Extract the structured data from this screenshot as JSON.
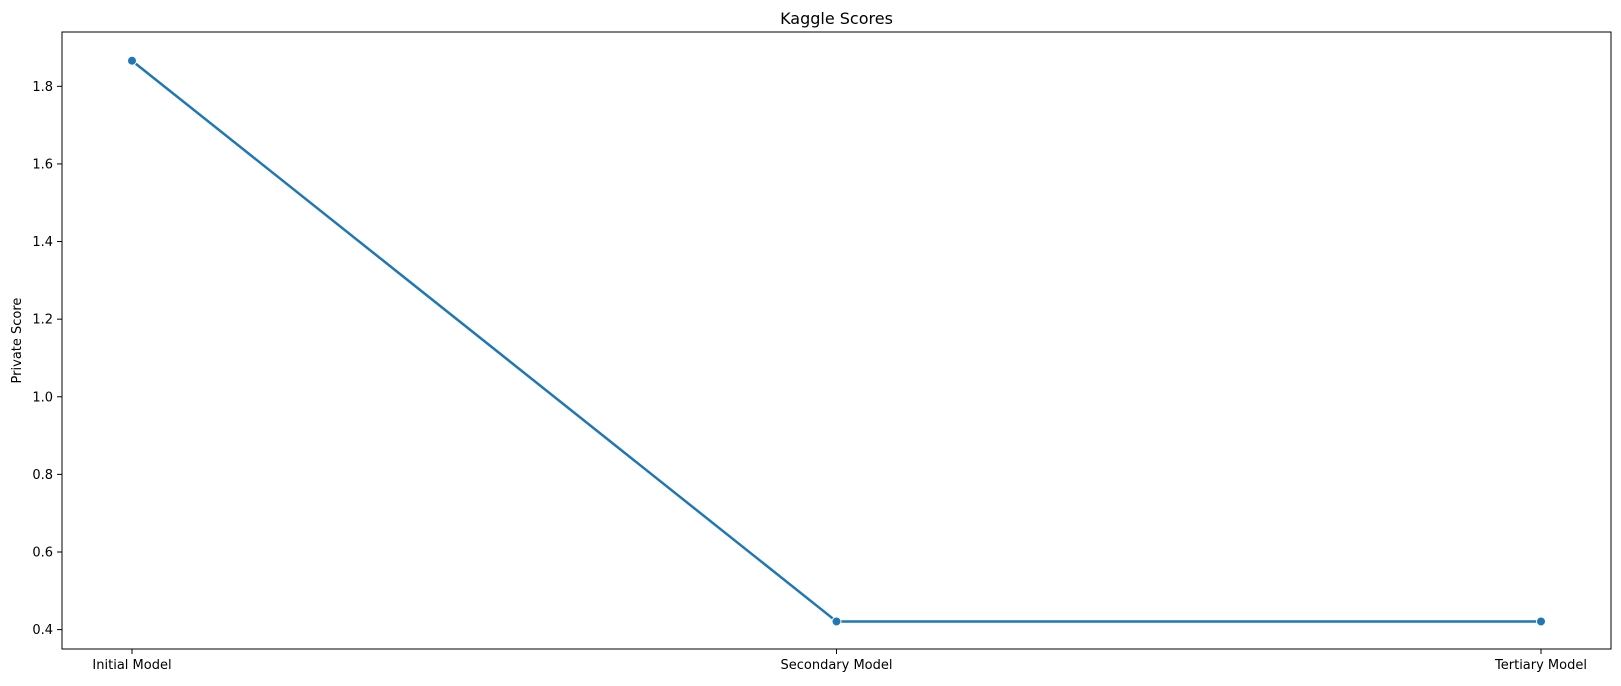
{
  "chart_data": {
    "type": "line",
    "title": "Kaggle Scores",
    "xlabel": "",
    "ylabel": "Private Score",
    "categories": [
      "Initial Model",
      "Secondary Model",
      "Tertiary Model"
    ],
    "series": [
      {
        "values": [
          1.866,
          0.421,
          0.421
        ],
        "color": "#1f77b4",
        "marker": "circle"
      }
    ],
    "ylim": [
      0.35,
      1.94
    ],
    "yticks": [
      0.4,
      0.6,
      0.8,
      1.0,
      1.2,
      1.4,
      1.6,
      1.8
    ],
    "ytick_labels": [
      "0.4",
      "0.6",
      "0.8",
      "1.0",
      "1.2",
      "1.4",
      "1.6",
      "1.8"
    ],
    "grid": false,
    "legend": "none"
  }
}
